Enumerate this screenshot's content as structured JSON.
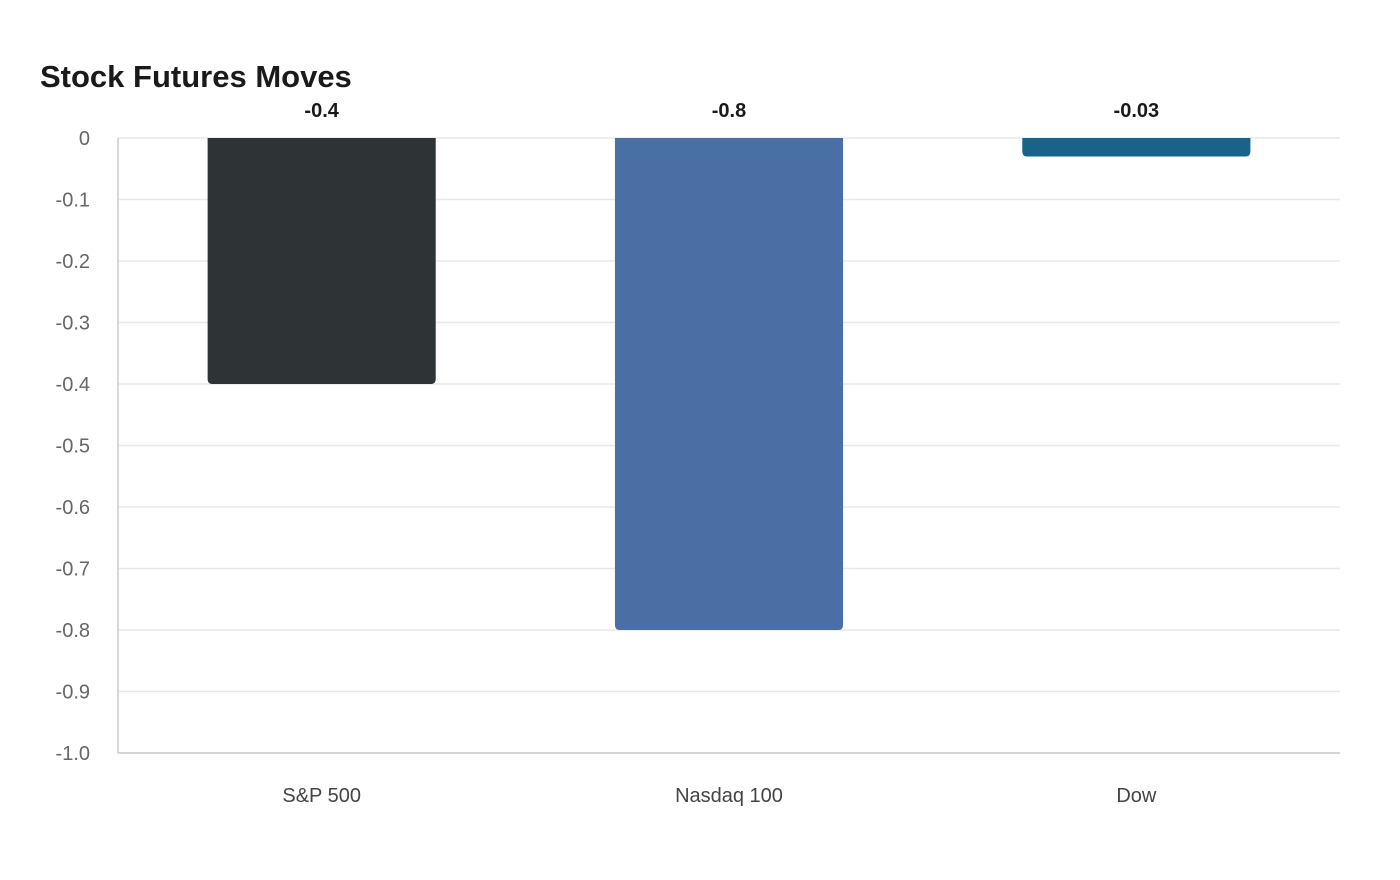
{
  "chart_data": {
    "type": "bar",
    "title": "Stock Futures Moves",
    "xlabel": "",
    "ylabel": "",
    "categories": [
      "S&P 500",
      "Nasdaq 100",
      "Dow"
    ],
    "values": [
      -0.4,
      -0.8,
      -0.03
    ],
    "value_labels": [
      "-0.4",
      "-0.8",
      "-0.03"
    ],
    "colors": [
      "#2e3436",
      "#4a6fa5",
      "#17638a"
    ],
    "ylim": [
      -1.0,
      0
    ],
    "yticks": [
      0,
      -0.1,
      -0.2,
      -0.3,
      -0.4,
      -0.5,
      -0.6,
      -0.7,
      -0.8,
      -0.9,
      -1.0
    ],
    "ytick_labels": [
      "0",
      "-0.1",
      "-0.2",
      "-0.3",
      "-0.4",
      "-0.5",
      "-0.6",
      "-0.7",
      "-0.8",
      "-0.9",
      "-1.0"
    ],
    "grid": true,
    "legend": "none"
  }
}
